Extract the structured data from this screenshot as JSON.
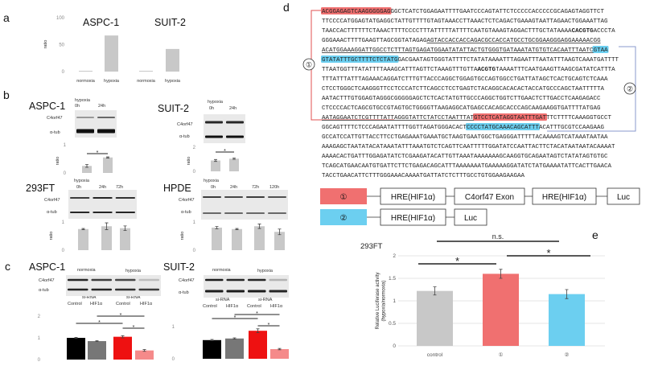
{
  "panels": {
    "a": "a",
    "b": "b",
    "c": "c",
    "d": "d",
    "e": "e"
  },
  "blots": {
    "b_aspc": {
      "title": "ASPC-1",
      "condition": "hypoxia",
      "times": [
        "0h",
        "24h"
      ],
      "protein": "C4orf47",
      "loading": "α-tub"
    },
    "b_suit": {
      "title": "SUIT-2",
      "condition": "hypoxia",
      "times": [
        "0h",
        "24h"
      ],
      "protein": "C4orf47",
      "loading": "α-tub"
    },
    "b_293": {
      "title": "293FT",
      "condition": "hypoxia",
      "times": [
        "0h",
        "24h",
        "72h"
      ],
      "protein": "C4orf47",
      "loading": "α-tub"
    },
    "b_hpde": {
      "title": "HPDE",
      "condition": "hypoxia",
      "times": [
        "0h",
        "24h",
        "72h",
        "120h"
      ],
      "protein": "C4orf47",
      "loading": "α-tub"
    },
    "c_aspc": {
      "title": "ASPC-1",
      "conditions": [
        "normoxia",
        "hypoxia"
      ],
      "protein": "C4orf47",
      "loading": "α-tub",
      "sirna": [
        "si-RNA",
        "si-RNA"
      ],
      "targets": [
        "Control",
        "HIF1α",
        "Control",
        "HIF1α"
      ]
    },
    "c_suit": {
      "title": "SUIT-2",
      "conditions": [
        "normoxia",
        "hypoxia"
      ],
      "protein": "C4orf47",
      "loading": "α-tub",
      "sirna": [
        "si-RNA",
        "si-RNA"
      ],
      "targets": [
        "Control",
        "HIF1α",
        "Control",
        "HIF1α"
      ]
    }
  },
  "sequence": [
    [
      {
        "t": "ACGGAGAGTCAAGGGGGAG",
        "s": "red"
      },
      {
        "t": "GGCTCATCTGGAGAATTTTGAATCCCAGTATTCTCCCCCACCCCCGCAGAGTAGGTTCT",
        "s": ""
      }
    ],
    [
      {
        "t": "TTCCCCATGGAGTATGAGGCTATTGTTTTGTAGTAAACCTTAAACTCTCAGACTGAAAGTAATTAGAACTGGAAATTAG",
        "s": ""
      }
    ],
    [
      {
        "t": "TAACCACTTTTTTCTAAACTTTTCCCCTTTATTTTTATTTTCAATGTAAAGTAGGACTTTGCTATAAAA",
        "s": ""
      },
      {
        "t": "CACGTG",
        "s": "bold"
      },
      {
        "t": "ACCCTA",
        "s": ""
      }
    ],
    [
      {
        "t": "GGGAAACTTTTGAAGTTAGCGGTATAGAG",
        "s": ""
      },
      {
        "t": "AGTACCACCACCAGACGCCACCATGCCTGCGGAAGGGAGGAAAAACGG",
        "s": "ul"
      }
    ],
    [
      {
        "t": "ACATGGAAAGGATTGGCCTCTTTAGTGAGATGGAATATATTACTGTGGGTGATAAATATGTGTCACAATTTAATC",
        "s": "ul"
      },
      {
        "t": "GTAA",
        "s": "blue"
      }
    ],
    [
      {
        "t": "GTATATTTGCTTTTCTCTATG",
        "s": "blue"
      },
      {
        "t": "GACGAATAGTGGGTATTTTCTATATAAAATTTAGAATTTAATATTTAAGTCAAATGATTTT",
        "s": ""
      }
    ],
    [
      {
        "t": "TTAATGGTTTATATTTTAAAGCATTTAGTTCTAAAGTTTGTTA",
        "s": ""
      },
      {
        "t": "ACGTG",
        "s": "bold"
      },
      {
        "t": "TAAAATTTCAATGAAGTTAAGCGATATCATTTA",
        "s": ""
      }
    ],
    [
      {
        "t": "TTTATTTATTTAGAAACAGGATCTTTGTTACCCAGGCTGGAGTGCCAGTGGCCTGATTATAGCTCACTGCAGTCTCAAA",
        "s": ""
      }
    ],
    [
      {
        "t": "CTCCTGGGCTCAAGGGTTCCTCCCATCTTCAGCCTCCTGAGTCTACAGGCACACACTACCATGCCCAGCTAATTTTTA",
        "s": ""
      }
    ],
    [
      {
        "t": "AATACTTTGTGGAGTAGGGCGGGGGAGCTCTCACTATGTTGCCCAGGCTGGTCTTGAACTCTTGACCTCAAGAGACC",
        "s": ""
      }
    ],
    [
      {
        "t": "CTCCCCACTCAGCGTGCCGTAGTGCTGGGGTTAAGAGGCATGAGCCACAGCACCCAGCAAGAAGGTGATTTTATGAG",
        "s": ""
      }
    ],
    [
      {
        "t": "AATAGGAATCTCGTTTTATTAGGGTATTCTATCCTAATTTAT",
        "s": "ul"
      },
      {
        "t": "GTCCTCATAGGTAATTTGAT",
        "s": "red"
      },
      {
        "t": "TTCTTTTCAAAGGTGCCT",
        "s": ""
      }
    ],
    [
      {
        "t": "GGCAGTTTTCTCCCAGAATATTTTGGTTAGATGGGACACT",
        "s": ""
      },
      {
        "t": "CCCCTATGCAAACAGCATTT",
        "s": "blue"
      },
      {
        "t": "ACATTTGCGTCCAAGAAG",
        "s": ""
      }
    ],
    [
      {
        "t": "GCCATCCATTGTTACCTTCCTGAGAAATGAAATGCTAAGTGAATGGCTGAGGGATTTTTACAAAAGTCATAAATAATAA",
        "s": ""
      }
    ],
    [
      {
        "t": "AAAGAGCTAATATACATAAATATTTAAATGTCTCAGTTCAATTTTTGGATATCCAATTACTTCTACATAATAATACAAAAT",
        "s": ""
      }
    ],
    [
      {
        "t": "AAAACACTGATTTGGAGATATCTCGAAGATACATTGTTAAATAAAAAAAGCAAGGTGCAGAATAGTCTATATAGTGTGC",
        "s": ""
      }
    ],
    [
      {
        "t": "TCAGCATGAACAATGTGATTCTTCTGAGACAGCATTTAAAAAAATGAAAAAGGATATCTATGAAAATATTCACTTGAACA",
        "s": ""
      }
    ],
    [
      {
        "t": "TACCTGAACATTCTTTGGGAAACAAAATGATTATCTCTTTGCCTGTGGAAGAAGAA",
        "s": ""
      }
    ]
  ],
  "constructs": {
    "c1": {
      "marker": "①",
      "boxes": [
        "HRE(HIF1α)",
        "C4orf47 Exon",
        "HRE(HIF1α)",
        "Luc"
      ]
    },
    "c2": {
      "marker": "②",
      "boxes": [
        "HRE(HIF1α)",
        "Luc"
      ]
    }
  },
  "colors": {
    "red": "#f07070",
    "blue": "#6ccff0",
    "black": "#000000",
    "gray": "#777777",
    "lightgray": "#c8c8c8",
    "brightred": "#ee1111",
    "pink": "#f58a8a"
  },
  "chart_data": [
    {
      "id": "a-aspc1",
      "type": "bar",
      "title": "ASPC-1",
      "ylabel": "ratio",
      "yticks": [
        "0",
        "50",
        "100"
      ],
      "ylim": [
        0,
        100
      ],
      "categories": [
        "normoxia",
        "hypoxia"
      ],
      "values": [
        1,
        67
      ],
      "colors": [
        "lightgray",
        "lightgray"
      ]
    },
    {
      "id": "a-suit2",
      "type": "bar",
      "title": "SUIT-2",
      "ylim": [
        0,
        100
      ],
      "categories": [
        "normoxia",
        "hypoxia"
      ],
      "values": [
        1,
        42
      ],
      "colors": [
        "lightgray",
        "lightgray"
      ]
    },
    {
      "id": "b-aspc1",
      "type": "bar",
      "ylabel": "ratio",
      "yticks": [
        "0",
        "1"
      ],
      "ylim": [
        0,
        1
      ],
      "categories": [
        "0h",
        "24h"
      ],
      "values": [
        0.25,
        0.55
      ],
      "errors": [
        0.05,
        0.02
      ],
      "colors": [
        "lightgray",
        "lightgray"
      ],
      "significance": [
        {
          "pair": [
            0,
            1
          ],
          "label": "*"
        }
      ]
    },
    {
      "id": "b-suit2",
      "type": "bar",
      "ylabel": "ratio",
      "yticks": [
        "0",
        "2"
      ],
      "ylim": [
        0,
        2
      ],
      "categories": [
        "0h",
        "24h"
      ],
      "values": [
        0.9,
        1.05
      ],
      "errors": [
        0.08,
        0.06
      ],
      "colors": [
        "lightgray",
        "lightgray"
      ],
      "significance": [
        {
          "pair": [
            0,
            1
          ],
          "label": "*"
        }
      ]
    },
    {
      "id": "b-293ft",
      "type": "bar",
      "ylabel": "ratio",
      "yticks": [
        "0",
        "1"
      ],
      "ylim": [
        0,
        1
      ],
      "categories": [
        "0h",
        "24h",
        "72h"
      ],
      "values": [
        0.75,
        0.85,
        0.78
      ],
      "errors": [
        0.02,
        0.12,
        0.08
      ],
      "colors": [
        "lightgray",
        "lightgray",
        "lightgray"
      ]
    },
    {
      "id": "b-hpde",
      "type": "bar",
      "ylabel": "ratio",
      "yticks": [
        "0",
        "1"
      ],
      "ylim": [
        0,
        1
      ],
      "categories": [
        "0h",
        "24h",
        "72h",
        "120h"
      ],
      "values": [
        0.8,
        0.75,
        0.85,
        0.65
      ],
      "errors": [
        0.04,
        0.02,
        0.08,
        0.1
      ],
      "colors": [
        "lightgray",
        "lightgray",
        "lightgray",
        "lightgray"
      ]
    },
    {
      "id": "c-aspc1",
      "type": "bar",
      "yticks": [
        "0",
        "1",
        "2"
      ],
      "ylim": [
        0,
        2
      ],
      "categories": [
        "normoxia si-Control",
        "normoxia si-HIF1α",
        "hypoxia si-Control",
        "hypoxia si-HIF1α"
      ],
      "values": [
        1.0,
        0.85,
        1.05,
        0.42
      ],
      "errors": [
        0.02,
        0.02,
        0.05,
        0.04
      ],
      "colors": [
        "black",
        "gray",
        "brightred",
        "pink"
      ],
      "significance": [
        {
          "pair": [
            0,
            2
          ],
          "label": "*"
        },
        {
          "pair": [
            1,
            3
          ],
          "label": "*"
        },
        {
          "pair": [
            2,
            3
          ],
          "label": "*"
        }
      ]
    },
    {
      "id": "c-suit2",
      "type": "bar",
      "yticks": [
        "0",
        "1"
      ],
      "ylim": [
        0,
        1
      ],
      "categories": [
        "normoxia si-Control",
        "normoxia si-HIF1α",
        "hypoxia si-Control",
        "hypoxia si-HIF1α"
      ],
      "values": [
        0.58,
        0.63,
        0.87,
        0.3
      ],
      "errors": [
        0.02,
        0.02,
        0.06,
        0.02
      ],
      "colors": [
        "black",
        "gray",
        "brightred",
        "pink"
      ],
      "significance": [
        {
          "pair": [
            0,
            2
          ],
          "label": "*"
        },
        {
          "pair": [
            1,
            3
          ],
          "label": "*"
        },
        {
          "pair": [
            2,
            3
          ],
          "label": "*"
        }
      ]
    },
    {
      "id": "e-293ft",
      "type": "bar",
      "title": "293FT",
      "ylabel": "Relative Luciferase activity",
      "ylabel2": "(hypoxia/normoxia)",
      "yticks": [
        "0",
        "0.5",
        "1",
        "1.5",
        "2"
      ],
      "ylim": [
        0,
        2
      ],
      "grid": true,
      "categories": [
        "control",
        "①",
        "②"
      ],
      "values": [
        1.22,
        1.6,
        1.15
      ],
      "errors": [
        0.09,
        0.1,
        0.1
      ],
      "colors": [
        "lightgray",
        "red",
        "blue"
      ],
      "significance": [
        {
          "pair": [
            0,
            1
          ],
          "label": "*"
        },
        {
          "pair": [
            0,
            2
          ],
          "label": "n.s."
        },
        {
          "pair": [
            1,
            2
          ],
          "label": "*"
        }
      ]
    }
  ]
}
